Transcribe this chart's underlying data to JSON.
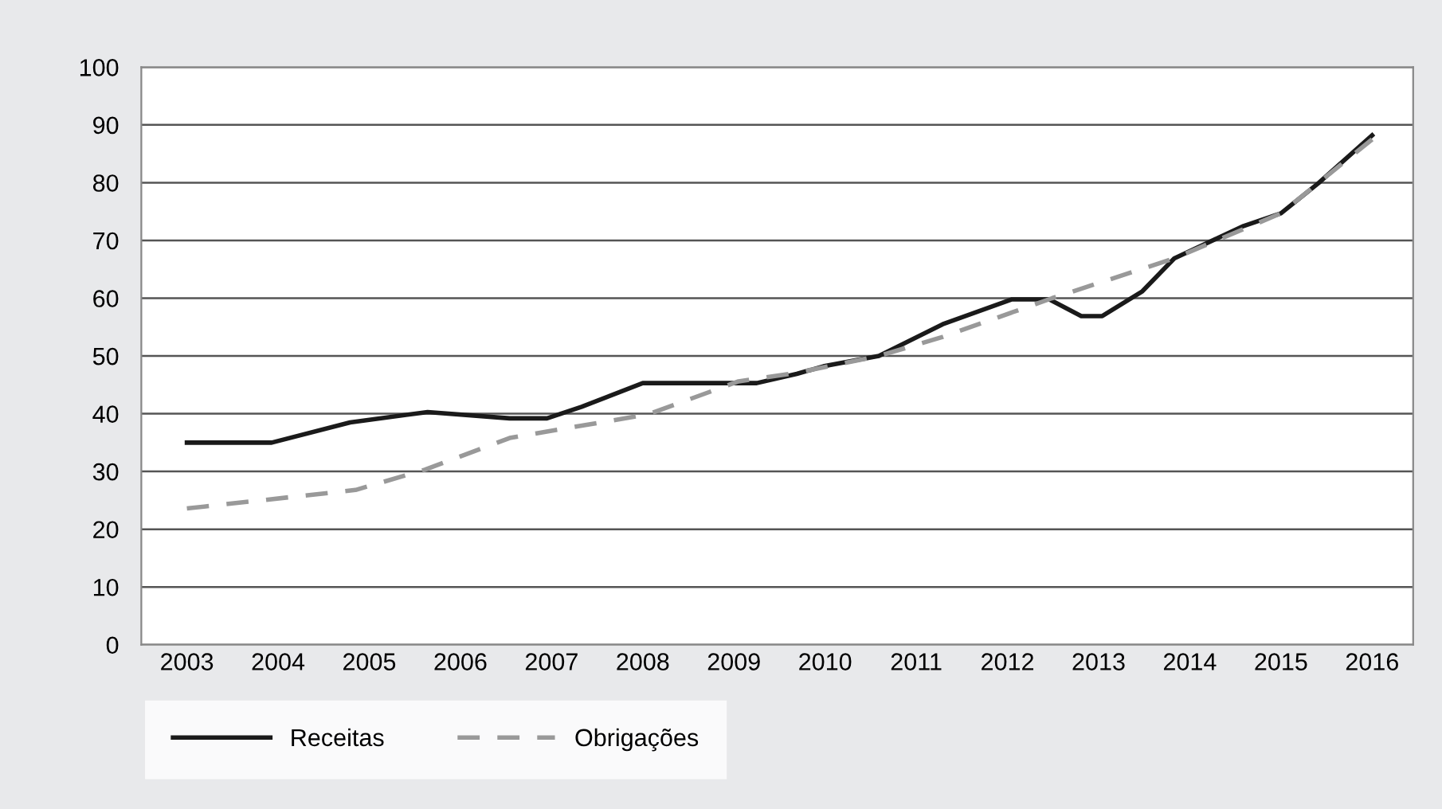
{
  "chart_data": {
    "type": "line",
    "series": [
      {
        "name": "Receitas",
        "color": "#1a1a1a",
        "line_style": "solid",
        "x": [
          2003.0,
          2003.93,
          2004.79,
          2005.64,
          2006.54,
          2006.95,
          2007.33,
          2008.0,
          2009.25,
          2009.69,
          2009.98,
          2010.59,
          2011.29,
          2012.05,
          2012.46,
          2012.81,
          2013.04,
          2013.48,
          2013.83,
          2014.59,
          2015.0,
          2015.41,
          2016.0
        ],
        "values": [
          35,
          35,
          38.5,
          40.3,
          39.2,
          39.2,
          41.2,
          45.3,
          45.3,
          46.9,
          48.2,
          50.0,
          55.5,
          59.8,
          59.8,
          56.9,
          56.9,
          61.2,
          66.9,
          72.5,
          74.7,
          79.9,
          88.2
        ]
      },
      {
        "name": "Obrigações",
        "color": "#999999",
        "line_style": "dashed",
        "x": [
          2003.0,
          2004.85,
          2005.61,
          2006.54,
          2008.06,
          2009.05,
          2009.69,
          2010.59,
          2011.29,
          2012.49,
          2013.83,
          2015.0,
          2016.0
        ],
        "values": [
          23.6,
          26.8,
          30.3,
          35.8,
          39.9,
          45.6,
          47.1,
          50.0,
          53.3,
          60.0,
          66.9,
          74.7,
          87.5
        ]
      }
    ],
    "xlim": [
      2002.5,
      2016.45
    ],
    "xticks": [
      2003,
      2004,
      2005,
      2006,
      2007,
      2008,
      2009,
      2010,
      2011,
      2012,
      2013,
      2014,
      2015,
      2016
    ],
    "ylim": [
      0,
      100
    ],
    "yticks": [
      0,
      10,
      20,
      30,
      40,
      50,
      60,
      70,
      80,
      90,
      100
    ],
    "grid": "y",
    "legend": "bottom"
  }
}
